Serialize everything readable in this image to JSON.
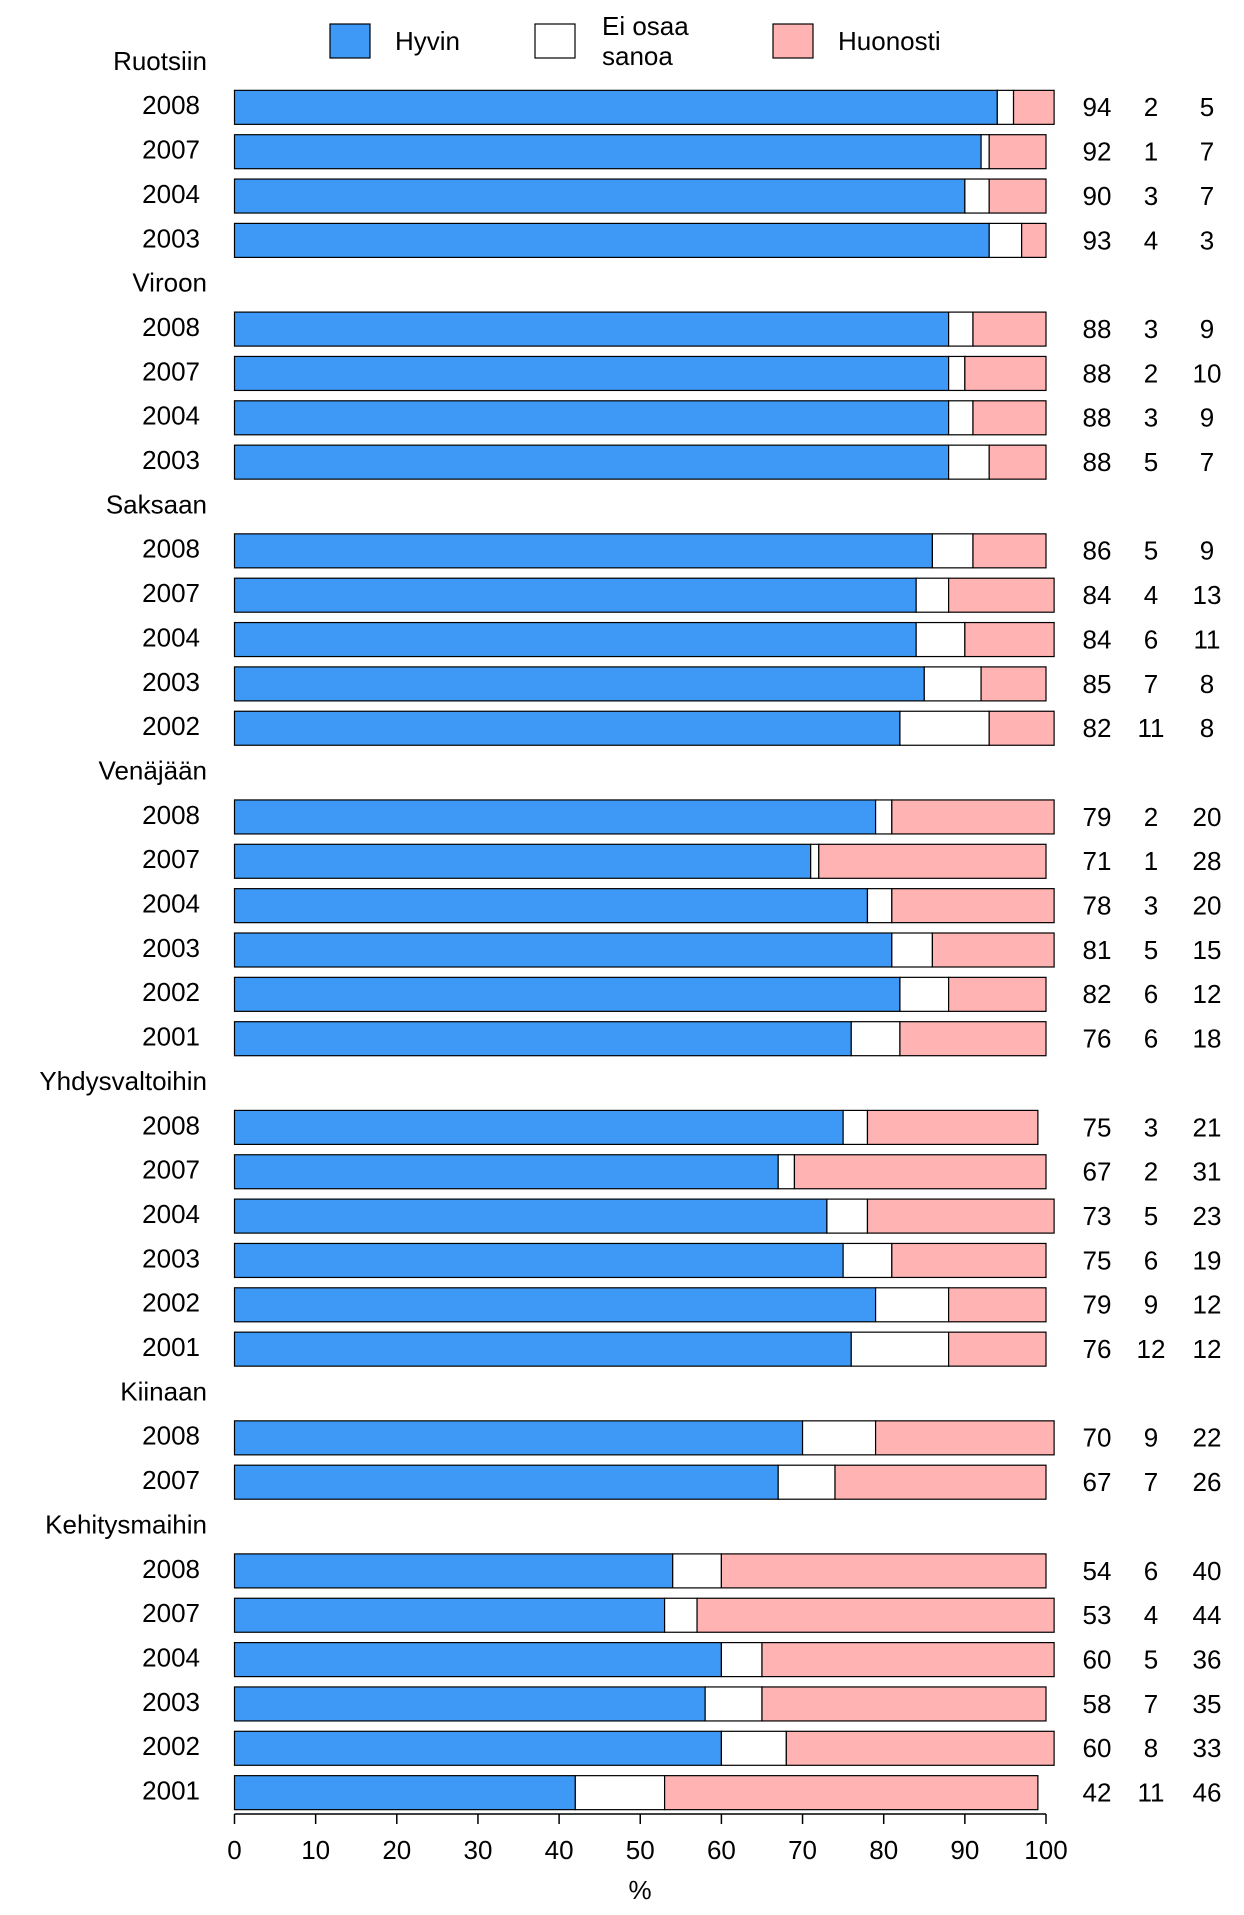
{
  "chart_data": {
    "type": "stacked-barh",
    "x_label": "%",
    "xlim": [
      0,
      100
    ],
    "xticks": [
      0,
      10,
      20,
      30,
      40,
      50,
      60,
      70,
      80,
      90,
      100
    ],
    "legend": "top",
    "groups": [
      {
        "name": "Ruotsiin",
        "categories": [
          "2008",
          "2007",
          "2004",
          "2003"
        ]
      },
      {
        "name": "Viroon",
        "categories": [
          "2008",
          "2007",
          "2004",
          "2003"
        ]
      },
      {
        "name": "Saksaan",
        "categories": [
          "2008",
          "2007",
          "2004",
          "2003",
          "2002"
        ]
      },
      {
        "name": "Venäjään",
        "categories": [
          "2008",
          "2007",
          "2004",
          "2003",
          "2002",
          "2001"
        ]
      },
      {
        "name": "Yhdysvaltoihin",
        "categories": [
          "2008",
          "2007",
          "2004",
          "2003",
          "2002",
          "2001"
        ]
      },
      {
        "name": "Kiinaan",
        "categories": [
          "2008",
          "2007"
        ]
      },
      {
        "name": "Kehitysmaihin",
        "categories": [
          "2008",
          "2007",
          "2004",
          "2003",
          "2002",
          "2001"
        ]
      }
    ],
    "series": [
      {
        "name": "Hyvin",
        "color": "#3d99f5",
        "values": [
          94,
          92,
          90,
          93,
          88,
          88,
          88,
          88,
          86,
          84,
          84,
          85,
          82,
          79,
          71,
          78,
          81,
          82,
          76,
          75,
          67,
          73,
          75,
          79,
          76,
          70,
          67,
          54,
          53,
          60,
          58,
          60,
          42
        ]
      },
      {
        "name": "Ei osaa sanoa",
        "color": "#ffffff",
        "values": [
          2,
          1,
          3,
          4,
          3,
          2,
          3,
          5,
          5,
          4,
          6,
          7,
          11,
          2,
          1,
          3,
          5,
          6,
          6,
          3,
          2,
          5,
          6,
          9,
          12,
          9,
          7,
          6,
          4,
          5,
          7,
          8,
          11
        ]
      },
      {
        "name": "Huonosti",
        "color": "#ffb3b3",
        "values": [
          5,
          7,
          7,
          3,
          9,
          10,
          9,
          7,
          9,
          13,
          11,
          8,
          8,
          20,
          28,
          20,
          15,
          12,
          18,
          21,
          31,
          23,
          19,
          12,
          12,
          22,
          26,
          40,
          44,
          36,
          35,
          33,
          46
        ]
      }
    ]
  }
}
